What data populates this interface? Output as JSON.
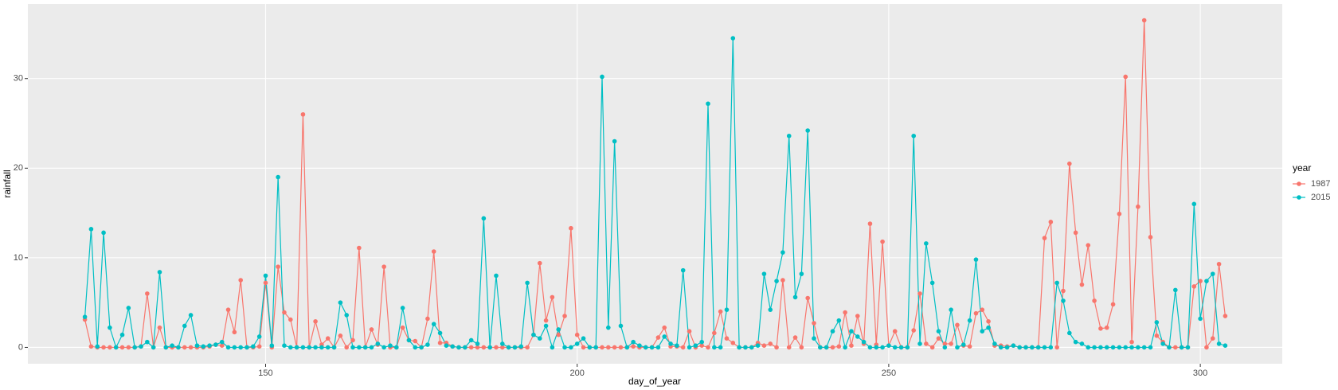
{
  "chart_data": {
    "type": "line",
    "x_label": "day_of_year",
    "y_label": "rainfall",
    "legend_title": "year",
    "legend_position": "right",
    "grid": true,
    "x": [
      121,
      122,
      123,
      124,
      125,
      126,
      127,
      128,
      129,
      130,
      131,
      132,
      133,
      134,
      135,
      136,
      137,
      138,
      139,
      140,
      141,
      142,
      143,
      144,
      145,
      146,
      147,
      148,
      149,
      150,
      151,
      152,
      153,
      154,
      155,
      156,
      157,
      158,
      159,
      160,
      161,
      162,
      163,
      164,
      165,
      166,
      167,
      168,
      169,
      170,
      171,
      172,
      173,
      174,
      175,
      176,
      177,
      178,
      179,
      180,
      181,
      182,
      183,
      184,
      185,
      186,
      187,
      188,
      189,
      190,
      191,
      192,
      193,
      194,
      195,
      196,
      197,
      198,
      199,
      200,
      201,
      202,
      203,
      204,
      205,
      206,
      207,
      208,
      209,
      210,
      211,
      212,
      213,
      214,
      215,
      216,
      217,
      218,
      219,
      220,
      221,
      222,
      223,
      224,
      225,
      226,
      227,
      228,
      229,
      230,
      231,
      232,
      233,
      234,
      235,
      236,
      237,
      238,
      239,
      240,
      241,
      242,
      243,
      244,
      245,
      246,
      247,
      248,
      249,
      250,
      251,
      252,
      253,
      254,
      255,
      256,
      257,
      258,
      259,
      260,
      261,
      262,
      263,
      264,
      265,
      266,
      267,
      268,
      269,
      270,
      271,
      272,
      273,
      274,
      275,
      276,
      277,
      278,
      279,
      280,
      281,
      282,
      283,
      284,
      285,
      286,
      287,
      288,
      289,
      290,
      291,
      292,
      293,
      294,
      295,
      296,
      297,
      298,
      299,
      300,
      301,
      302,
      303,
      304
    ],
    "series": [
      {
        "name": "1987",
        "color": "#F8766D",
        "values": [
          3.1,
          0.1,
          0,
          0,
          0,
          0,
          0,
          0,
          0,
          0.1,
          6.0,
          0,
          2.2,
          0,
          0,
          0,
          0,
          0,
          0,
          0,
          0.1,
          0.3,
          0.2,
          4.2,
          1.7,
          7.5,
          0,
          0,
          0.1,
          7.2,
          0,
          9.0,
          3.9,
          3.1,
          0,
          26.0,
          0,
          2.9,
          0.3,
          1.0,
          0,
          1.3,
          0,
          0.8,
          11.1,
          0,
          2.0,
          0.3,
          9.0,
          0,
          0,
          2.2,
          0.8,
          0.7,
          0,
          3.2,
          10.7,
          0.5,
          0.5,
          0.1,
          0,
          0,
          0,
          0,
          0,
          0,
          0,
          0,
          0,
          0,
          0,
          0,
          1.4,
          9.4,
          3.0,
          5.6,
          1.4,
          3.5,
          13.3,
          1.4,
          0,
          0,
          0,
          0,
          0,
          0,
          0,
          0,
          0.1,
          0,
          0,
          0,
          1.1,
          2.2,
          0.1,
          0.1,
          0,
          1.8,
          0,
          0.2,
          0,
          1.6,
          4.0,
          1.0,
          0.5,
          0,
          0,
          0,
          0.5,
          0.2,
          0.4,
          0,
          7.5,
          0,
          1.1,
          0,
          5.5,
          2.7,
          0,
          0,
          0,
          0.1,
          3.9,
          0.2,
          3.5,
          0.4,
          13.8,
          0.3,
          11.8,
          0.2,
          1.8,
          0,
          0,
          1.9,
          6.0,
          0.4,
          0,
          1.0,
          0.4,
          0.4,
          2.5,
          0.2,
          0.1,
          3.8,
          4.2,
          2.9,
          0.2,
          0.2,
          0.1,
          0.2,
          0,
          0,
          0,
          0,
          12.2,
          14.0,
          0,
          6.3,
          20.5,
          12.8,
          7.0,
          11.4,
          5.2,
          2.1,
          2.2,
          4.8,
          14.9,
          30.2,
          0.6,
          15.7,
          36.5,
          12.3,
          1.3,
          0.6,
          0,
          0,
          0,
          0,
          6.8,
          7.4,
          0,
          1.0,
          9.3,
          3.5
        ]
      },
      {
        "name": "2015",
        "color": "#00BFC4",
        "values": [
          3.4,
          13.2,
          0.1,
          12.8,
          2.2,
          0,
          1.4,
          4.4,
          0,
          0.1,
          0.6,
          0,
          8.4,
          0,
          0.2,
          0,
          2.4,
          3.6,
          0.2,
          0.1,
          0.2,
          0.3,
          0.6,
          0,
          0,
          0,
          0,
          0.1,
          1.2,
          8.0,
          0.2,
          19.0,
          0.2,
          0,
          0,
          0,
          0,
          0,
          0,
          0,
          0,
          5.0,
          3.6,
          0,
          0,
          0,
          0,
          0.4,
          0,
          0.2,
          0,
          4.4,
          0.8,
          0,
          0,
          0.3,
          2.6,
          1.6,
          0.2,
          0.1,
          0,
          0,
          0.8,
          0.4,
          14.4,
          0,
          8.0,
          0.4,
          0,
          0,
          0.1,
          7.2,
          1.4,
          1.0,
          2.4,
          0,
          2.0,
          0,
          0,
          0.4,
          1.0,
          0,
          0,
          30.2,
          2.2,
          23.0,
          2.4,
          0,
          0.6,
          0.2,
          0,
          0,
          0,
          1.2,
          0.4,
          0.2,
          8.6,
          0,
          0.2,
          0.6,
          27.2,
          0,
          0,
          4.2,
          34.5,
          0,
          0,
          0,
          0.2,
          8.2,
          4.2,
          7.4,
          10.6,
          23.6,
          5.6,
          8.2,
          24.2,
          1.0,
          0,
          0,
          1.8,
          3.0,
          0,
          1.8,
          1.2,
          0.6,
          0,
          0,
          0,
          0.2,
          0,
          0,
          0,
          23.6,
          0.4,
          11.6,
          7.2,
          1.8,
          0,
          4.2,
          0,
          0.3,
          3.0,
          9.8,
          1.8,
          2.2,
          0.4,
          0,
          0,
          0.2,
          0,
          0,
          0,
          0,
          0,
          0,
          7.2,
          5.2,
          1.6,
          0.6,
          0.4,
          0,
          0,
          0,
          0,
          0,
          0,
          0,
          0,
          0,
          0,
          0,
          2.8,
          0.4,
          0,
          6.4,
          0,
          0,
          16.0,
          3.2,
          7.4,
          8.2,
          0.4,
          0.2
        ]
      }
    ],
    "xlim": [
      111.85,
      313.15
    ],
    "xticks": [
      150,
      200,
      250,
      300
    ],
    "ylim": [
      -1.825,
      38.325
    ],
    "yticks": [
      0,
      10,
      20,
      30
    ]
  }
}
